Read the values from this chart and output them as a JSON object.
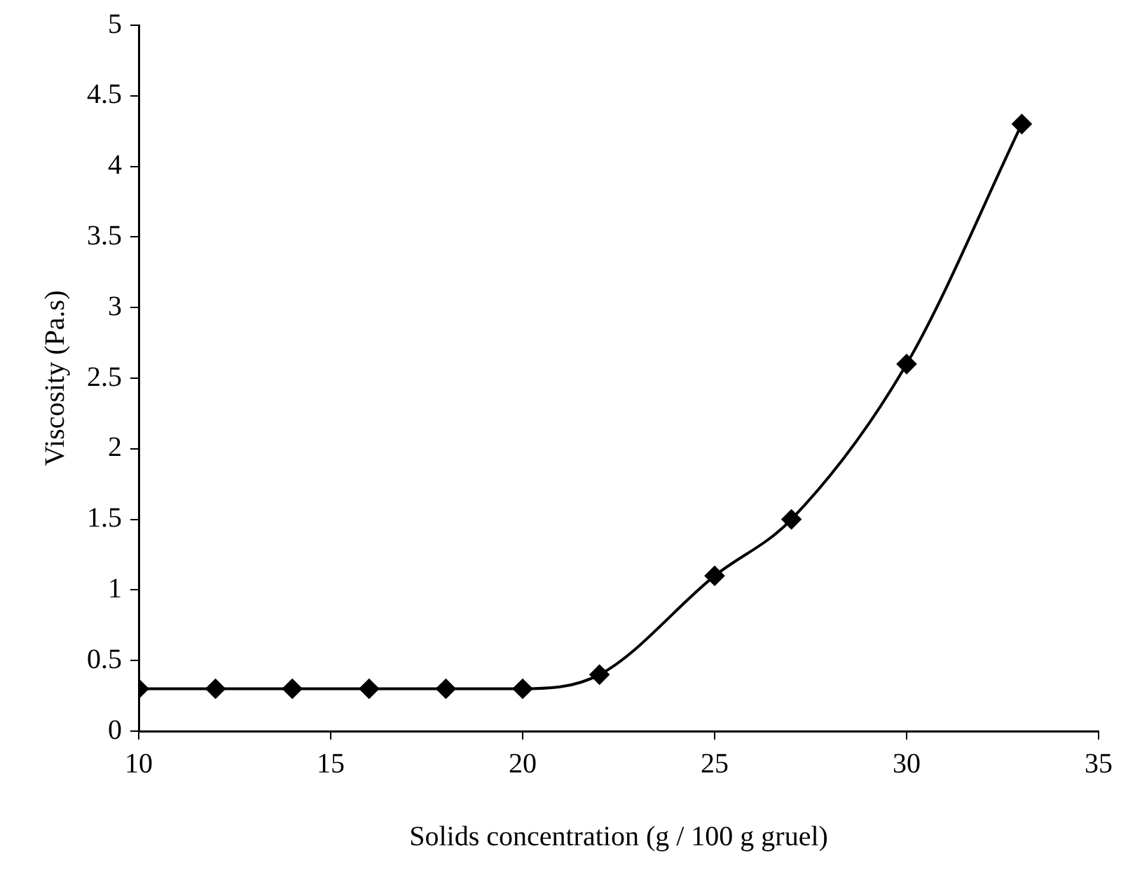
{
  "chart_data": {
    "type": "line",
    "xlabel": "Solids concentration (g / 100 g gruel)",
    "ylabel": "Viscosity (Pa.s)",
    "x": [
      10,
      12,
      14,
      16,
      18,
      20,
      22,
      25,
      27,
      30,
      33
    ],
    "series": [
      {
        "color": "#000000",
        "values": [
          0.3,
          0.3,
          0.3,
          0.3,
          0.3,
          0.3,
          0.4,
          1.1,
          1.5,
          2.6,
          4.3
        ]
      }
    ],
    "xlim": [
      10,
      35
    ],
    "xticks": [
      10,
      15,
      20,
      25,
      30,
      35
    ],
    "ylim": [
      0,
      5
    ],
    "yticks": [
      0,
      0.5,
      1,
      1.5,
      2,
      2.5,
      3,
      3.5,
      4,
      4.5,
      5
    ],
    "grid": false,
    "legend": false,
    "marker": "diamond",
    "line_style": "solid"
  }
}
